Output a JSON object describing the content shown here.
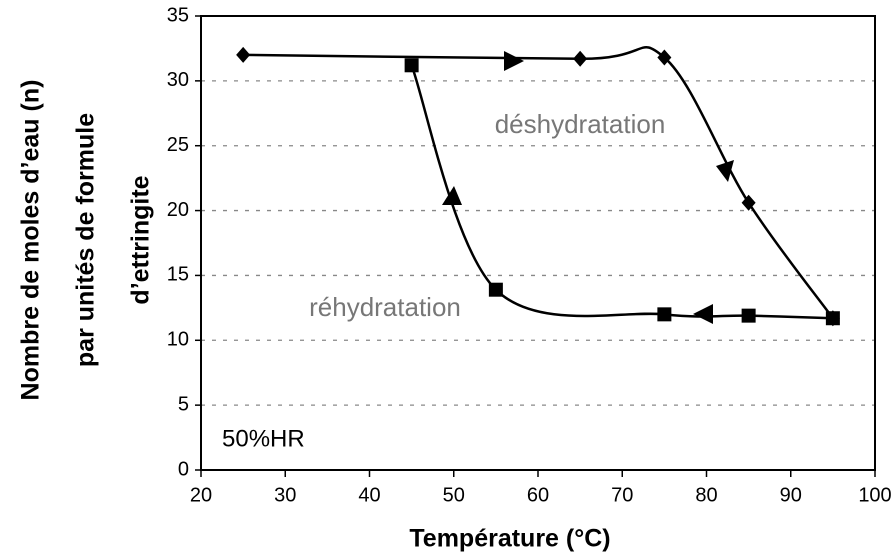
{
  "chart_data": {
    "type": "line",
    "xlabel": "Température (°C)",
    "ylabel": [
      "Nombre de moles d’eau (n)",
      "par unités de formule",
      "d’ettringite"
    ],
    "annotation": "50%HR",
    "xlim": [
      20,
      100
    ],
    "xticks": [
      20,
      30,
      40,
      50,
      60,
      70,
      80,
      90,
      100
    ],
    "ylim": [
      0,
      35
    ],
    "yticks": [
      0,
      5,
      10,
      15,
      20,
      25,
      30,
      35
    ],
    "grid": true,
    "series": [
      {
        "name": "déshydratation",
        "color": "#000000",
        "marker": "diamond",
        "x": [
          25,
          65,
          75,
          85,
          95
        ],
        "values": [
          32,
          31.7,
          31.8,
          20.6,
          11.7
        ]
      },
      {
        "name": "réhydratation",
        "color": "#000000",
        "marker": "square",
        "x": [
          95,
          85,
          75,
          55,
          45
        ],
        "values": [
          11.7,
          11.9,
          12,
          13.9,
          31.2
        ]
      }
    ]
  }
}
